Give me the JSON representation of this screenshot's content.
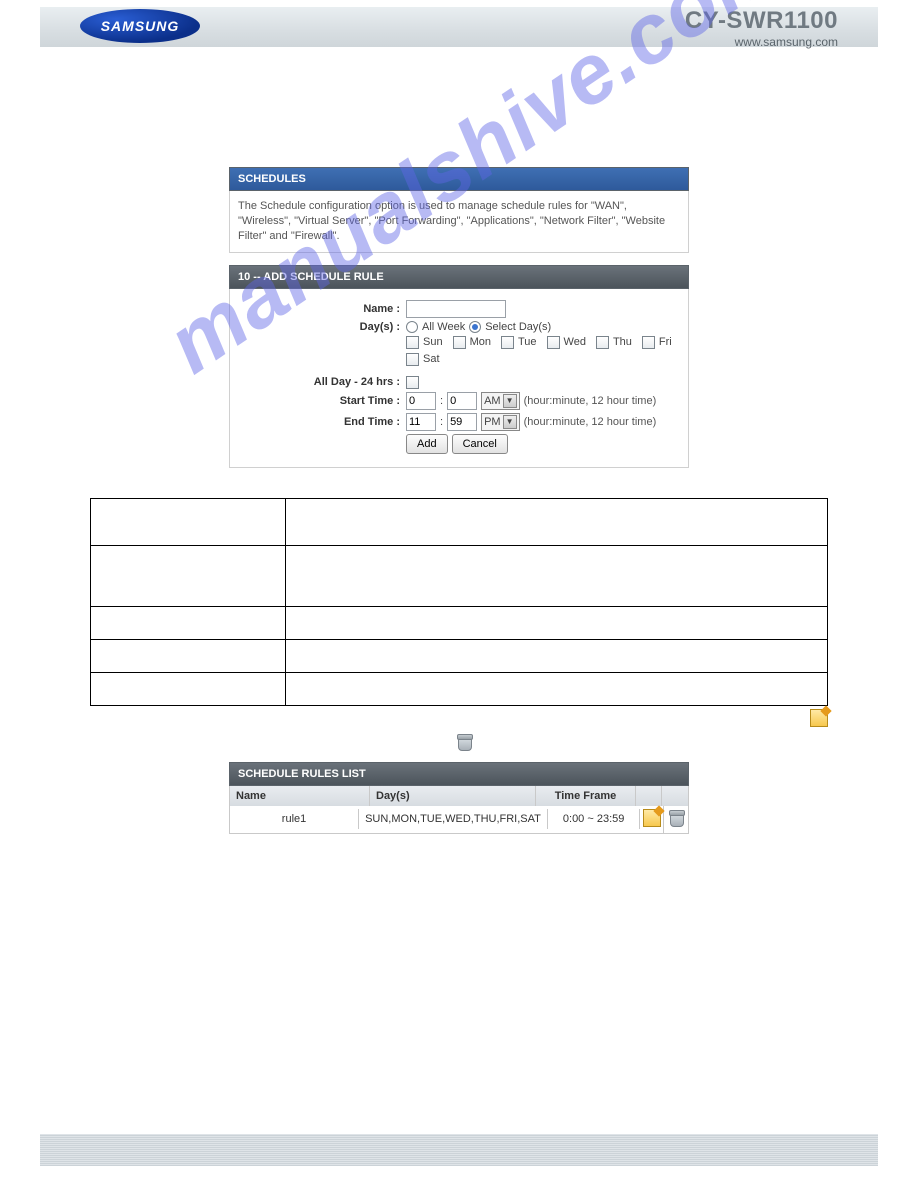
{
  "header": {
    "brand": "SAMSUNG",
    "model": "CY-SWR1100",
    "url": "www.samsung.com"
  },
  "sections": {
    "schedules_title": "SCHEDULES",
    "schedules_desc": "The Schedule configuration option is used to manage schedule rules for \"WAN\", \"Wireless\", \"Virtual Server\", \"Port Forwarding\", \"Applications\", \"Network Filter\", \"Website Filter\" and \"Firewall\".",
    "add_title": "10 -- ADD SCHEDULE RULE",
    "rules_title": "SCHEDULE RULES LIST"
  },
  "form": {
    "label_name": "Name  :",
    "label_days": "Day(s)  :",
    "opt_allweek": "All Week",
    "opt_selectdays": "Select Day(s)",
    "days": [
      "Sun",
      "Mon",
      "Tue",
      "Wed",
      "Thu",
      "Fri",
      "Sat"
    ],
    "label_allday": "All Day - 24 hrs  :",
    "label_start": "Start Time  :",
    "label_end": "End Time  :",
    "start_h": "0",
    "start_m": "0",
    "start_ampm": "AM",
    "end_h": "11",
    "end_m": "59",
    "end_ampm": "PM",
    "hint": "(hour:minute, 12 hour time)",
    "btn_add": "Add",
    "btn_cancel": "Cancel",
    "colon": ":"
  },
  "big_table_row_heights": [
    47,
    61,
    33,
    33,
    33
  ],
  "cols": [
    "Name",
    "Day(s)",
    "Time Frame"
  ],
  "rule": {
    "name": "rule1",
    "days": "SUN,MON,TUE,WED,THU,FRI,SAT",
    "time": "0:00 ~ 23:59"
  },
  "watermark": "manualshive.com",
  "colors": {
    "accent": "#2e5a9b",
    "dark": "#4c545b"
  }
}
